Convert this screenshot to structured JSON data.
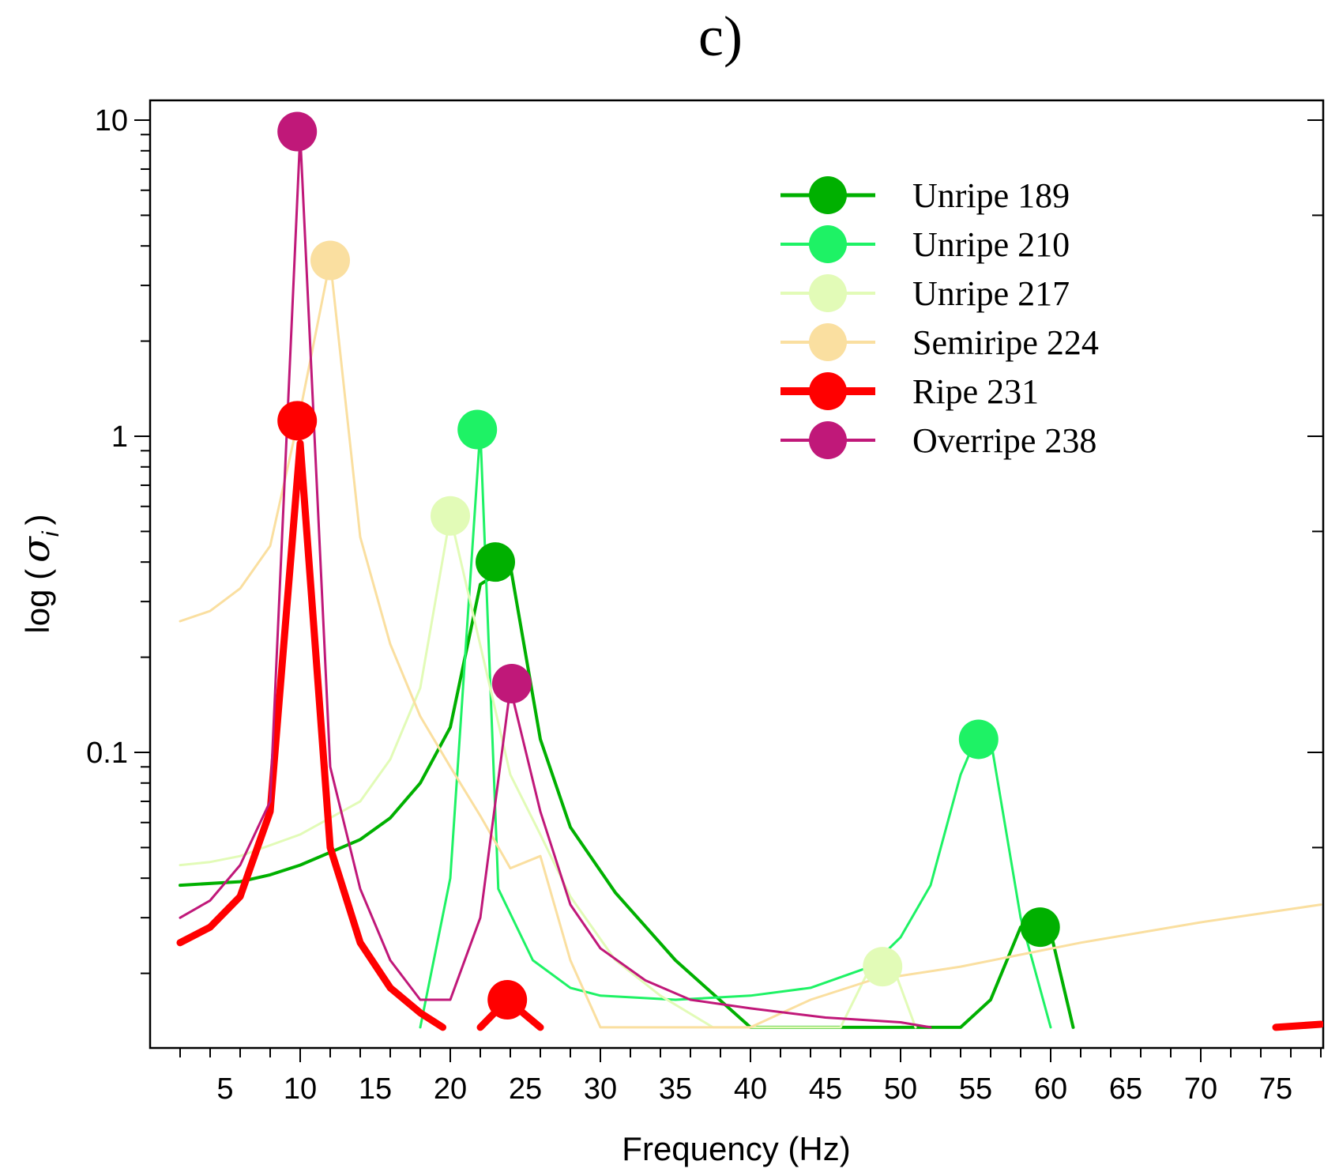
{
  "chart_data": {
    "type": "line",
    "title": "c)",
    "xlabel": "Frequency (Hz)",
    "ylabel_prefix": "log (",
    "ylabel_symbol": "σ",
    "ylabel_subscript": "i",
    "ylabel_suffix": ")",
    "yscale": "log",
    "xlim": [
      0,
      78
    ],
    "ylim": [
      0.0135,
      11
    ],
    "xticks": [
      5,
      10,
      15,
      20,
      25,
      30,
      35,
      40,
      45,
      50,
      55,
      60,
      65,
      70,
      75
    ],
    "xtick_labels": [
      "5",
      "10",
      "15",
      "20",
      "25",
      "30",
      "35",
      "40",
      "45",
      "50",
      "55",
      "60",
      "65",
      "70",
      "75"
    ],
    "yticks": [
      0.1,
      1,
      10
    ],
    "ytick_labels": [
      "0.1",
      "1",
      "10"
    ],
    "legend_position": "top-right",
    "series": [
      {
        "name": "Unripe 189",
        "color": "#00b000",
        "stroke": 4,
        "points": [
          [
            2,
            0.038
          ],
          [
            6,
            0.039
          ],
          [
            8,
            0.041
          ],
          [
            10,
            0.044
          ],
          [
            14,
            0.053
          ],
          [
            16,
            0.062
          ],
          [
            18,
            0.08
          ],
          [
            20,
            0.12
          ],
          [
            22,
            0.34
          ],
          [
            24,
            0.39
          ],
          [
            26,
            0.11
          ],
          [
            28,
            0.058
          ],
          [
            31,
            0.036
          ],
          [
            35,
            0.022
          ],
          [
            40,
            0.0135
          ],
          [
            54,
            0.0135
          ],
          [
            56,
            0.0165
          ],
          [
            58,
            0.028
          ],
          [
            60,
            0.027
          ],
          [
            61.5,
            0.0135
          ]
        ],
        "peaks": [
          [
            23,
            0.4
          ],
          [
            59.3,
            0.028
          ]
        ]
      },
      {
        "name": "Unripe 210",
        "color": "#1ef265",
        "stroke": 3,
        "points": [
          [
            18,
            0.0135
          ],
          [
            20,
            0.04
          ],
          [
            22,
            1.05
          ],
          [
            23.2,
            0.037
          ],
          [
            25.5,
            0.022
          ],
          [
            28,
            0.018
          ],
          [
            30,
            0.017
          ],
          [
            35,
            0.0165
          ],
          [
            40,
            0.017
          ],
          [
            44,
            0.018
          ],
          [
            48,
            0.021
          ],
          [
            50,
            0.026
          ],
          [
            52,
            0.038
          ],
          [
            54,
            0.085
          ],
          [
            55,
            0.11
          ],
          [
            56,
            0.11
          ],
          [
            58,
            0.03
          ],
          [
            60,
            0.0135
          ]
        ],
        "peaks": [
          [
            21.8,
            1.05
          ],
          [
            55.2,
            0.11
          ]
        ]
      },
      {
        "name": "Unripe 217",
        "color": "#e2fbb7",
        "stroke": 3,
        "points": [
          [
            2,
            0.044
          ],
          [
            4,
            0.045
          ],
          [
            6,
            0.047
          ],
          [
            10,
            0.055
          ],
          [
            14,
            0.07
          ],
          [
            16,
            0.095
          ],
          [
            18,
            0.16
          ],
          [
            20,
            0.56
          ],
          [
            24,
            0.085
          ],
          [
            26,
            0.055
          ],
          [
            28,
            0.035
          ],
          [
            31,
            0.022
          ],
          [
            34,
            0.017
          ],
          [
            37.5,
            0.0135
          ],
          [
            46,
            0.0135
          ],
          [
            48,
            0.021
          ],
          [
            49.5,
            0.021
          ],
          [
            51,
            0.0135
          ]
        ],
        "peaks": [
          [
            20,
            0.56
          ],
          [
            48.8,
            0.021
          ]
        ]
      },
      {
        "name": "Semiripe 224",
        "color": "#fadfa0",
        "stroke": 3,
        "points": [
          [
            2,
            0.26
          ],
          [
            4,
            0.28
          ],
          [
            6,
            0.33
          ],
          [
            8,
            0.45
          ],
          [
            10,
            1.2
          ],
          [
            12,
            3.6
          ],
          [
            14,
            0.48
          ],
          [
            16,
            0.22
          ],
          [
            18,
            0.13
          ],
          [
            20,
            0.09
          ],
          [
            22,
            0.063
          ],
          [
            24,
            0.043
          ],
          [
            26,
            0.047
          ],
          [
            28,
            0.022
          ],
          [
            30,
            0.0135
          ],
          [
            40,
            0.0135
          ],
          [
            44,
            0.0165
          ],
          [
            48,
            0.019
          ],
          [
            54,
            0.021
          ],
          [
            62,
            0.025
          ],
          [
            70,
            0.029
          ],
          [
            78,
            0.033
          ]
        ],
        "peaks": [
          [
            12,
            3.6
          ]
        ]
      },
      {
        "name": "Ripe 231",
        "color": "#ff0000",
        "stroke": 9,
        "points": [
          [
            2,
            0.025
          ],
          [
            4,
            0.028
          ],
          [
            6,
            0.035
          ],
          [
            8,
            0.065
          ],
          [
            10,
            0.95
          ],
          [
            12,
            0.05
          ],
          [
            14,
            0.025
          ],
          [
            16,
            0.018
          ],
          [
            18,
            0.015
          ],
          [
            19.5,
            0.0135
          ]
        ],
        "segments": [
          [
            [
              22,
              0.0135
            ],
            [
              23.8,
              0.0165
            ],
            [
              26,
              0.0135
            ]
          ],
          [
            [
              75,
              0.0135
            ],
            [
              78,
              0.0138
            ]
          ]
        ],
        "peaks": [
          [
            9.8,
            1.12
          ],
          [
            23.8,
            0.0165
          ]
        ]
      },
      {
        "name": "Overripe 238",
        "color": "#c01879",
        "stroke": 3,
        "points": [
          [
            2,
            0.03
          ],
          [
            4,
            0.034
          ],
          [
            6,
            0.044
          ],
          [
            8,
            0.07
          ],
          [
            10,
            9.0
          ],
          [
            12,
            0.09
          ],
          [
            14,
            0.037
          ],
          [
            16,
            0.022
          ],
          [
            18,
            0.0165
          ],
          [
            20,
            0.0165
          ],
          [
            22,
            0.03
          ],
          [
            24,
            0.16
          ],
          [
            26,
            0.065
          ],
          [
            28,
            0.033
          ],
          [
            30,
            0.024
          ],
          [
            33,
            0.019
          ],
          [
            36,
            0.0165
          ],
          [
            40,
            0.0155
          ],
          [
            45,
            0.0145
          ],
          [
            50,
            0.014
          ],
          [
            52,
            0.0135
          ]
        ],
        "peaks": [
          [
            9.8,
            9.2
          ],
          [
            24.1,
            0.165
          ]
        ]
      }
    ]
  }
}
